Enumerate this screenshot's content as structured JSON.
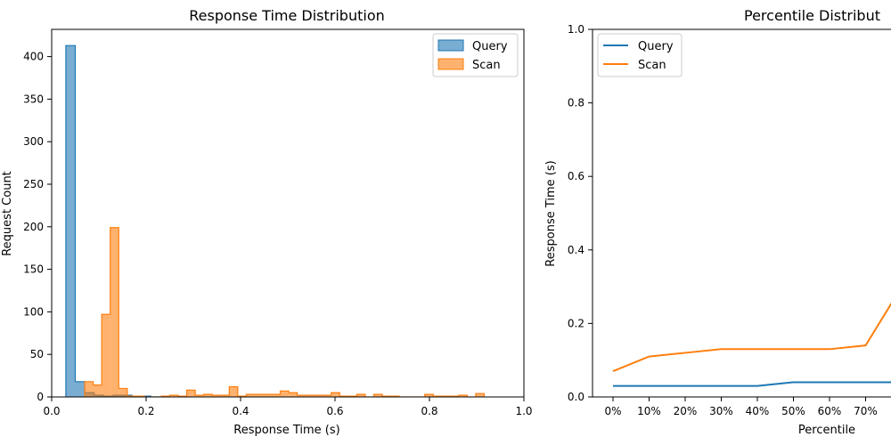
{
  "chart_data": [
    {
      "type": "histogram",
      "title": "Response Time Distribution",
      "xlabel": "Response Time (s)",
      "ylabel": "Request Count",
      "xlim": [
        0.0,
        1.0
      ],
      "ylim": [
        0,
        432
      ],
      "xticks": [
        "0.0",
        "0.2",
        "0.4",
        "0.6",
        "0.8",
        "1.0"
      ],
      "xtick_values": [
        0.0,
        0.2,
        0.4,
        0.6,
        0.8,
        1.0
      ],
      "yticks": [
        "0",
        "50",
        "100",
        "150",
        "200",
        "250",
        "300",
        "350",
        "400"
      ],
      "ytick_values": [
        0,
        50,
        100,
        150,
        200,
        250,
        300,
        350,
        400
      ],
      "legend_position": "top-right",
      "series": [
        {
          "name": "Query",
          "color": "#1f77b4",
          "bin_edges": [
            0.03,
            0.05,
            0.07,
            0.09,
            0.11,
            0.13,
            0.15,
            0.17,
            0.19,
            0.21,
            0.23
          ],
          "counts": [
            413,
            18,
            5,
            2,
            1,
            2,
            2,
            1,
            1,
            0
          ]
        },
        {
          "name": "Scan",
          "color": "#ff7f0e",
          "bin_edges": [
            0.07,
            0.088,
            0.106,
            0.124,
            0.142,
            0.16,
            0.178,
            0.196,
            0.214,
            0.232,
            0.25,
            0.268,
            0.286,
            0.304,
            0.322,
            0.34,
            0.358,
            0.376,
            0.394,
            0.412,
            0.43,
            0.448,
            0.466,
            0.484,
            0.502,
            0.52,
            0.538,
            0.556,
            0.574,
            0.592,
            0.61,
            0.628,
            0.646,
            0.664,
            0.682,
            0.7,
            0.718,
            0.736,
            0.754,
            0.772,
            0.79,
            0.808,
            0.826,
            0.844,
            0.862,
            0.88,
            0.898,
            0.916
          ],
          "counts": [
            18,
            14,
            97,
            199,
            10,
            1,
            1,
            0,
            0,
            1,
            2,
            1,
            8,
            2,
            3,
            2,
            2,
            12,
            1,
            3,
            3,
            3,
            3,
            7,
            5,
            2,
            2,
            2,
            2,
            5,
            1,
            1,
            3,
            0,
            3,
            1,
            1,
            0,
            0,
            0,
            3,
            1,
            1,
            1,
            2,
            0,
            4
          ]
        }
      ]
    },
    {
      "type": "line",
      "title": "Percentile Distribut",
      "xlabel": "Percentile",
      "ylabel": "Response Time (s)",
      "categories": [
        "0%",
        "10%",
        "20%",
        "30%",
        "40%",
        "50%",
        "60%",
        "70%",
        "8"
      ],
      "ylim": [
        0.0,
        1.0
      ],
      "yticks": [
        "0.0",
        "0.2",
        "0.4",
        "0.6",
        "0.8",
        "1.0"
      ],
      "ytick_values": [
        0.0,
        0.2,
        0.4,
        0.6,
        0.8,
        1.0
      ],
      "legend_position": "top-left",
      "series": [
        {
          "name": "Query",
          "color": "#1f77b4",
          "values": [
            0.03,
            0.03,
            0.03,
            0.03,
            0.03,
            0.04,
            0.04,
            0.04,
            0.04
          ]
        },
        {
          "name": "Scan",
          "color": "#ff7f0e",
          "values": [
            0.07,
            0.11,
            0.12,
            0.13,
            0.13,
            0.13,
            0.13,
            0.14,
            0.3
          ]
        }
      ]
    }
  ]
}
